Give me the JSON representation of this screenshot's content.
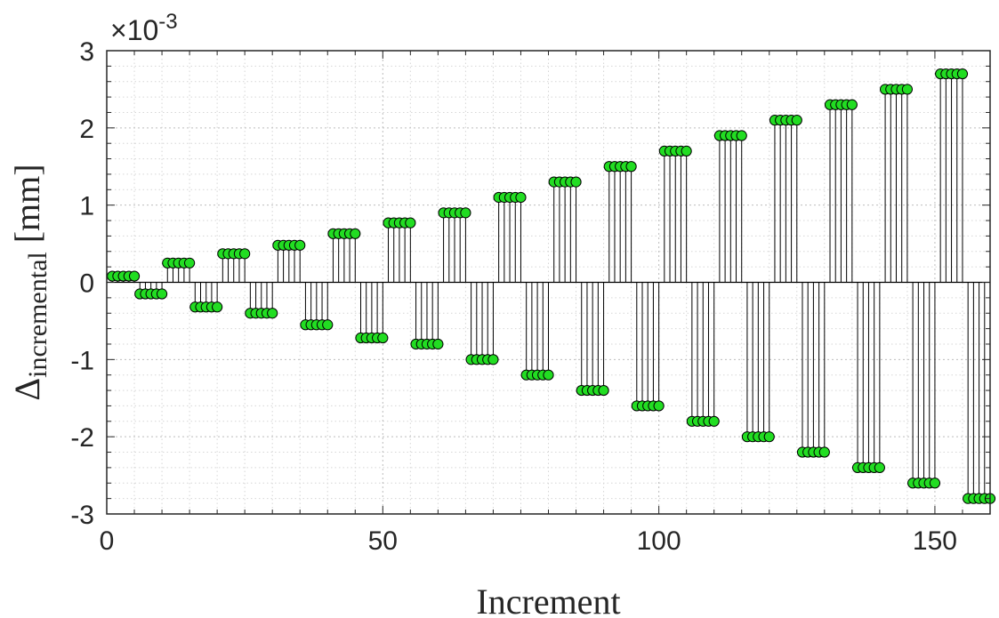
{
  "chart_data": {
    "type": "stem",
    "xlabel": "Increment",
    "ylabel_main": "Δ",
    "ylabel_sub": "incremental",
    "ylabel_unit": "[mm]",
    "exponent_prefix": "×10",
    "exponent_power": "-3",
    "xlim": [
      0,
      160
    ],
    "ylim": [
      -3,
      3
    ],
    "xticks": [
      0,
      50,
      100,
      150
    ],
    "yticks": [
      -3,
      -2,
      -1,
      0,
      1,
      2,
      3
    ],
    "xtick_labels": [
      "0",
      "50",
      "100",
      "150"
    ],
    "ytick_labels": [
      "-3",
      "-2",
      "-1",
      "0",
      "1",
      "2",
      "3"
    ],
    "grid": true,
    "minor_grid": true,
    "group_size": 5,
    "x_start": 1,
    "group_values": [
      0.08,
      -0.15,
      0.25,
      -0.32,
      0.37,
      -0.4,
      0.48,
      -0.55,
      0.63,
      -0.72,
      0.77,
      -0.8,
      0.9,
      -1.0,
      1.1,
      -1.2,
      1.3,
      -1.4,
      1.5,
      -1.6,
      1.7,
      -1.8,
      1.9,
      -2.0,
      2.1,
      -2.2,
      2.3,
      -2.4,
      2.5,
      -2.6,
      2.7,
      -2.8
    ],
    "marker_color": "#22dd22",
    "marker_edge": "#000000",
    "stem_color": "#000000"
  }
}
